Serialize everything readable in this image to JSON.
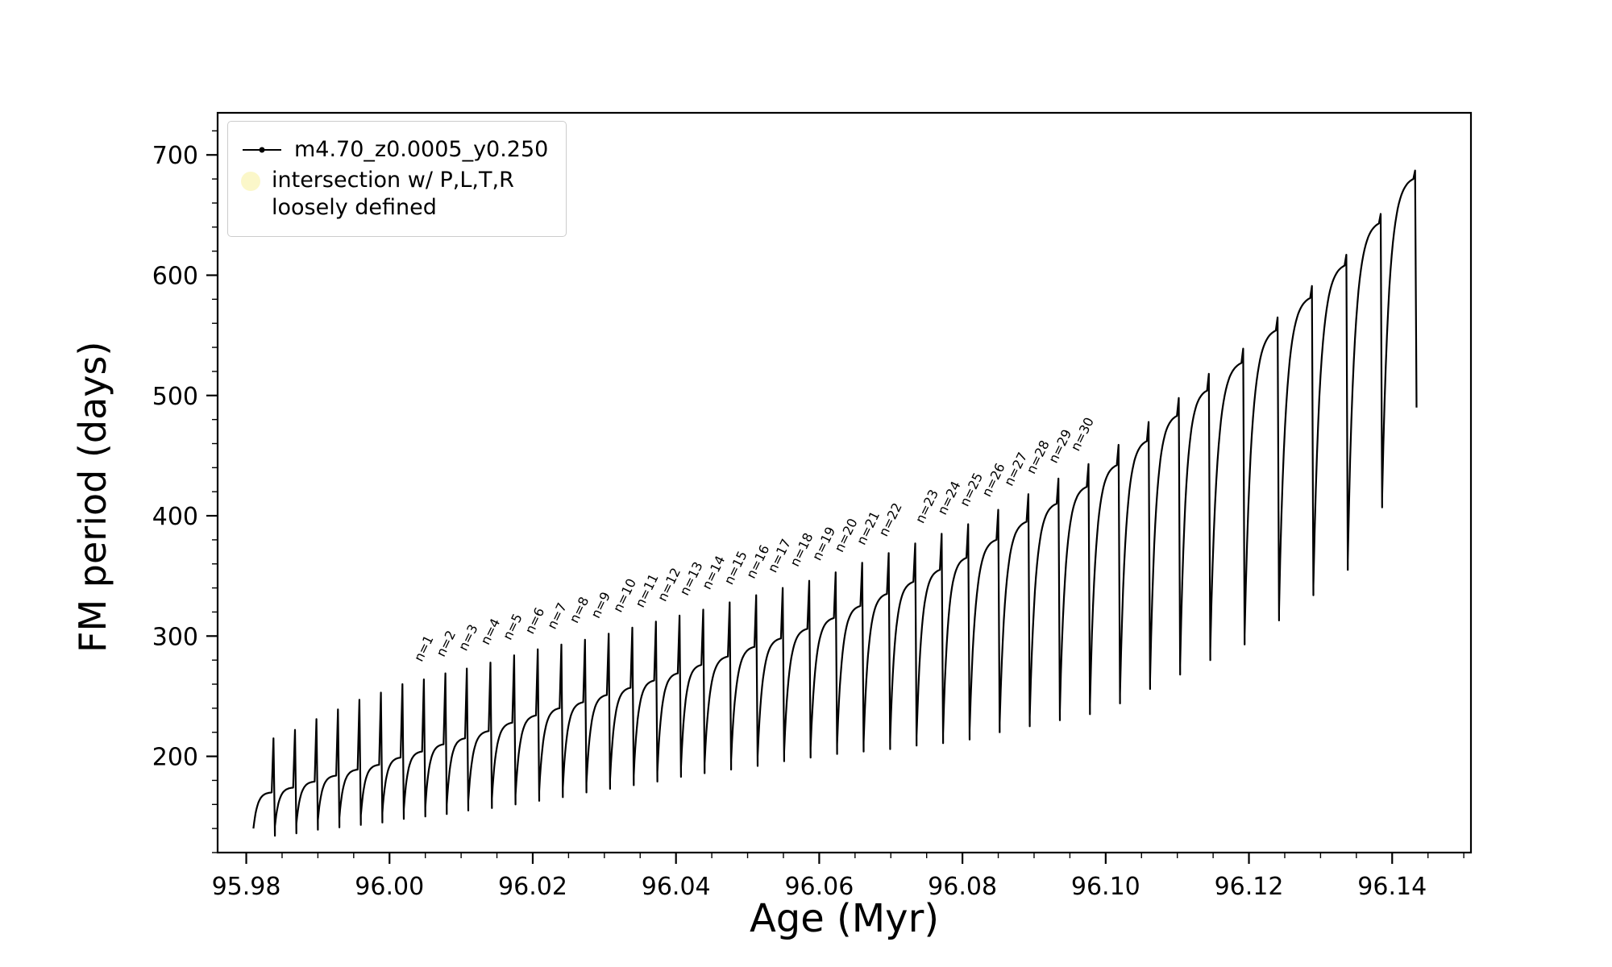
{
  "page": {
    "background": "#ffffff"
  },
  "chart_data": {
    "type": "line",
    "title": "",
    "xlabel": "Age (Myr)",
    "ylabel": "FM period (days)",
    "xlim": [
      95.976,
      96.151
    ],
    "ylim": [
      120,
      735
    ],
    "grid": false,
    "line_color": "#000000",
    "x_major_ticks": [
      95.98,
      96.0,
      96.02,
      96.04,
      96.06,
      96.08,
      96.1,
      96.12,
      96.14
    ],
    "x_tick_labels": [
      "95.98",
      "96.00",
      "96.02",
      "96.04",
      "96.06",
      "96.08",
      "96.10",
      "96.12",
      "96.14"
    ],
    "y_major_ticks": [
      200,
      300,
      400,
      500,
      600,
      700
    ],
    "y_tick_labels": [
      "200",
      "300",
      "400",
      "500",
      "600",
      "700"
    ],
    "x_minor_step": 0.005,
    "y_minor_step": 20,
    "cycles_format": [
      "x_start",
      "x_end",
      "y_start_low",
      "y_peak",
      "spike_above_peak",
      "dip_min"
    ],
    "series": [
      {
        "name": "m4.70_z0.0005_y0.250",
        "color": "#000000",
        "marker": ".",
        "cycles": [
          [
            95.981,
            95.984,
            140,
            170,
            45,
            134
          ],
          [
            95.984,
            95.987,
            142,
            174,
            48,
            136
          ],
          [
            95.987,
            95.99,
            144,
            179,
            52,
            139
          ],
          [
            95.99,
            95.993,
            147,
            184,
            55,
            141
          ],
          [
            95.993,
            95.996,
            149,
            189,
            58,
            143
          ],
          [
            95.996,
            95.999,
            151,
            193,
            60,
            145
          ],
          [
            95.999,
            96.002,
            153,
            199,
            61,
            148
          ],
          [
            96.002,
            96.005,
            156,
            204,
            60,
            150
          ],
          [
            96.005,
            96.008,
            158,
            210,
            59,
            152
          ],
          [
            96.008,
            96.011,
            160,
            215,
            58,
            155
          ],
          [
            96.011,
            96.0143,
            163,
            221,
            57,
            157
          ],
          [
            96.0143,
            96.0176,
            165,
            228,
            56,
            160
          ],
          [
            96.0176,
            96.0209,
            168,
            234,
            55,
            163
          ],
          [
            96.0209,
            96.0242,
            171,
            240,
            53,
            166
          ],
          [
            96.0242,
            96.0275,
            174,
            245,
            52,
            170
          ],
          [
            96.0275,
            96.0308,
            178,
            251,
            51,
            173
          ],
          [
            96.0308,
            96.0341,
            181,
            257,
            50,
            176
          ],
          [
            96.0341,
            96.0374,
            184,
            263,
            49,
            179
          ],
          [
            96.0374,
            96.0407,
            187,
            269,
            48,
            183
          ],
          [
            96.0407,
            96.044,
            191,
            276,
            46,
            186
          ],
          [
            96.044,
            96.0477,
            194,
            283,
            45,
            189
          ],
          [
            96.0477,
            96.0514,
            197,
            291,
            43,
            192
          ],
          [
            96.0514,
            96.0551,
            200,
            298,
            42,
            196
          ],
          [
            96.0551,
            96.0588,
            204,
            306,
            40,
            199
          ],
          [
            96.0588,
            96.0625,
            207,
            315,
            38,
            202
          ],
          [
            96.0625,
            96.0662,
            210,
            325,
            36,
            204
          ],
          [
            96.0662,
            96.0699,
            212,
            335,
            34,
            206
          ],
          [
            96.0699,
            96.0736,
            214,
            345,
            32,
            209
          ],
          [
            96.0736,
            96.0773,
            217,
            355,
            30,
            211
          ],
          [
            96.0773,
            96.081,
            219,
            365,
            28,
            214
          ],
          [
            96.081,
            96.0852,
            222,
            380,
            25,
            220
          ],
          [
            96.0852,
            96.0894,
            228,
            395,
            23,
            225
          ],
          [
            96.0894,
            96.0936,
            233,
            410,
            21,
            230
          ],
          [
            96.0936,
            96.0978,
            238,
            424,
            19,
            235
          ],
          [
            96.0978,
            96.102,
            243,
            442,
            17,
            244
          ],
          [
            96.102,
            96.1062,
            252,
            462,
            16,
            256
          ],
          [
            96.1062,
            96.1104,
            264,
            483,
            15,
            268
          ],
          [
            96.1104,
            96.1146,
            276,
            504,
            14,
            280
          ],
          [
            96.1146,
            96.1194,
            288,
            527,
            12,
            293
          ],
          [
            96.1194,
            96.1242,
            301,
            554,
            11,
            313
          ],
          [
            96.1242,
            96.129,
            321,
            581,
            10,
            334
          ],
          [
            96.129,
            96.1338,
            342,
            608,
            9,
            355
          ],
          [
            96.1338,
            96.1386,
            363,
            643,
            8,
            407
          ],
          [
            96.1386,
            96.1434,
            415,
            680,
            7,
            490
          ]
        ]
      }
    ],
    "annotations_rotation_deg": -64,
    "annotations": [
      {
        "label": "n=1",
        "x": 96.0045,
        "y": 278
      },
      {
        "label": "n=2",
        "x": 96.0076,
        "y": 282
      },
      {
        "label": "n=3",
        "x": 96.0107,
        "y": 287
      },
      {
        "label": "n=4",
        "x": 96.0138,
        "y": 292
      },
      {
        "label": "n=5",
        "x": 96.0169,
        "y": 296
      },
      {
        "label": "n=6",
        "x": 96.02,
        "y": 301
      },
      {
        "label": "n=7",
        "x": 96.0231,
        "y": 305
      },
      {
        "label": "n=8",
        "x": 96.0262,
        "y": 310
      },
      {
        "label": "n=9",
        "x": 96.0292,
        "y": 314
      },
      {
        "label": "n=10",
        "x": 96.0323,
        "y": 319
      },
      {
        "label": "n=11",
        "x": 96.0354,
        "y": 323
      },
      {
        "label": "n=12",
        "x": 96.0385,
        "y": 328
      },
      {
        "label": "n=13",
        "x": 96.0416,
        "y": 333
      },
      {
        "label": "n=14",
        "x": 96.0447,
        "y": 338
      },
      {
        "label": "n=15",
        "x": 96.0478,
        "y": 342
      },
      {
        "label": "n=16",
        "x": 96.0509,
        "y": 347
      },
      {
        "label": "n=17",
        "x": 96.0539,
        "y": 352
      },
      {
        "label": "n=18",
        "x": 96.057,
        "y": 357
      },
      {
        "label": "n=19",
        "x": 96.0601,
        "y": 362
      },
      {
        "label": "n=20",
        "x": 96.0632,
        "y": 369
      },
      {
        "label": "n=21",
        "x": 96.0663,
        "y": 375
      },
      {
        "label": "n=22",
        "x": 96.0694,
        "y": 382
      },
      {
        "label": "n=23",
        "x": 96.0745,
        "y": 393
      },
      {
        "label": "n=24",
        "x": 96.0776,
        "y": 400
      },
      {
        "label": "n=25",
        "x": 96.0807,
        "y": 407
      },
      {
        "label": "n=26",
        "x": 96.0838,
        "y": 415
      },
      {
        "label": "n=27",
        "x": 96.0869,
        "y": 424
      },
      {
        "label": "n=28",
        "x": 96.09,
        "y": 434
      },
      {
        "label": "n=29",
        "x": 96.0931,
        "y": 443
      },
      {
        "label": "n=30",
        "x": 96.0962,
        "y": 453
      }
    ],
    "legend": {
      "position": "upper left",
      "entries": [
        {
          "label": "m4.70_z0.0005_y0.250",
          "type": "line-dot",
          "color": "#000000"
        },
        {
          "label_lines": [
            "intersection w/ P,L,T,R",
            "loosely defined"
          ],
          "type": "circle",
          "color": "#fbf7c9"
        }
      ]
    }
  }
}
